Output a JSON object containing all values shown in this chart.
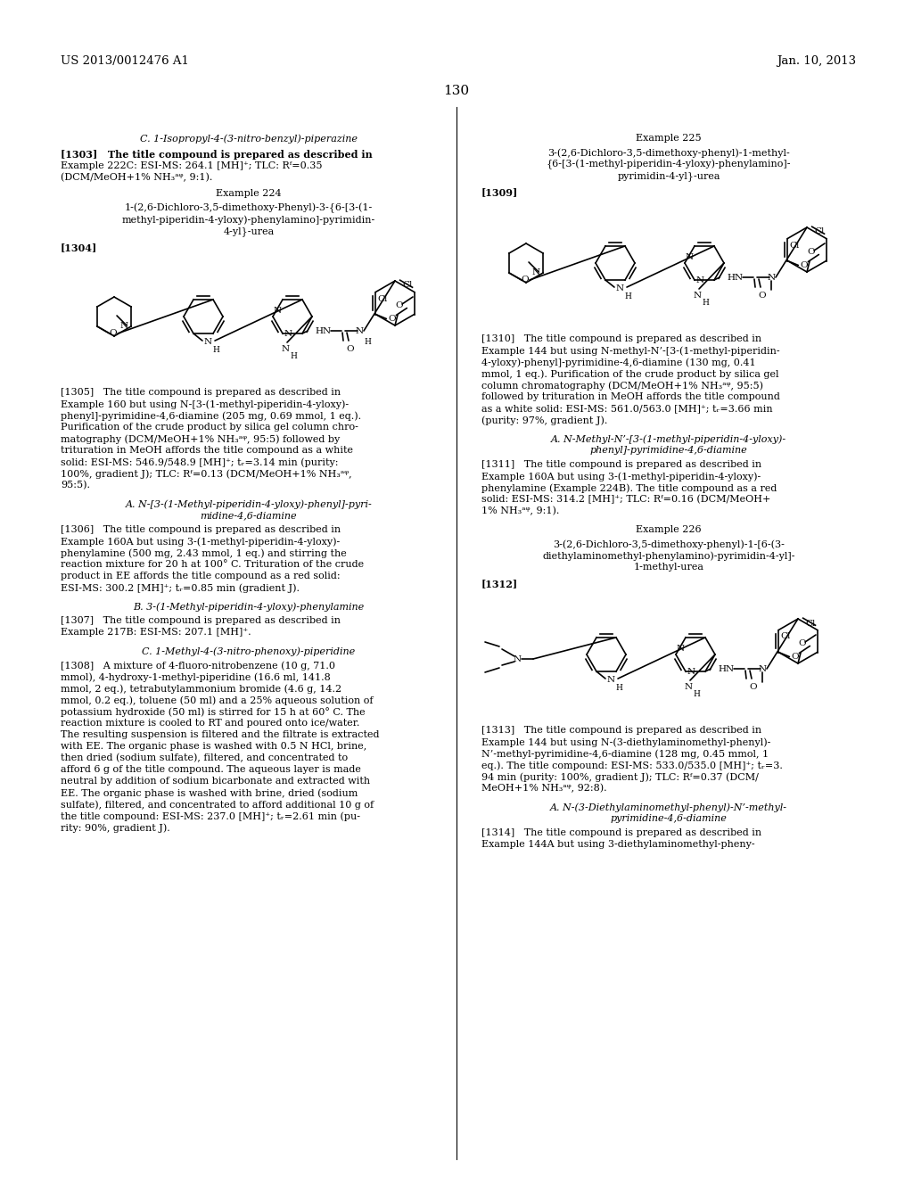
{
  "background_color": "#ffffff",
  "page_number": "130",
  "header_left": "US 2013/0012476 A1",
  "header_right": "Jan. 10, 2013",
  "font_color": "#000000"
}
